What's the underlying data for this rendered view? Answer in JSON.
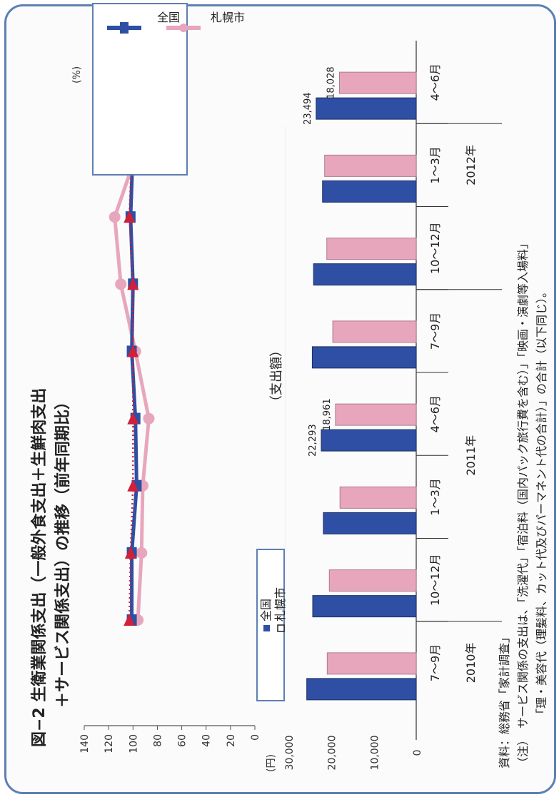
{
  "figure": {
    "title_line1": "図−2 生衛業関係支出（一般外食支出＋生鮮肉支出",
    "title_line2": "＋サービス関係支出）の推移（前年同期比）",
    "subtitle_bar": "（支出額）",
    "unit_percent": "(%)",
    "unit_yen": "(円)",
    "legend_line": [
      "全国",
      "札幌市"
    ],
    "legend_bar": [
      "全国",
      "札幌市"
    ],
    "periods": [
      "7〜9月",
      "10〜12月",
      "1〜3月",
      "4〜6月",
      "7〜9月",
      "10〜12月",
      "1〜3月",
      "4〜6月"
    ],
    "years": [
      "2010年",
      "2011年",
      "2012年"
    ],
    "source": "資料：総務省「家計調査」",
    "note1": "（注）　サービス関係の支出は、「洗濯代」「宿泊料（国内パック旅行費を含む）」「映画・演劇等入場料」",
    "note2": "「理・美容代（理髪料、カット代及びパーマネント代の合計）」の合計（以下同じ）。"
  },
  "colors": {
    "zenkoku": "#2e4fa3",
    "sapporo": "#e8a6bd",
    "marker": "#d0203a",
    "frame": "#5d7fb3"
  },
  "chart_data": [
    {
      "type": "line",
      "title": "図−2 生衛業関係支出（一般外食支出＋生鮮肉支出＋サービス関係支出）の推移（前年同期比）",
      "ylabel": "(%)",
      "ylim": [
        0,
        140
      ],
      "yticks": [
        "140",
        "120",
        "100",
        "80",
        "60",
        "40",
        "20",
        "0"
      ],
      "categories": [
        "7〜9月",
        "10〜12月",
        "1〜3月",
        "4〜6月",
        "7〜9月",
        "10〜12月",
        "1〜3月",
        "4〜6月"
      ],
      "series": [
        {
          "name": "全国",
          "values": [
            101,
            101,
            97,
            98,
            101,
            100,
            102,
            100
          ]
        },
        {
          "name": "札幌市",
          "values": [
            96,
            93,
            92,
            87,
            98,
            110,
            115,
            96
          ]
        },
        {
          "name": "",
          "values": [
            103,
            102,
            100,
            100,
            100,
            100,
            103,
            101
          ],
          "style": "dotted"
        }
      ],
      "legend_position": "right"
    },
    {
      "type": "bar",
      "title": "（支出額）",
      "ylabel": "(円)",
      "ylim": [
        0,
        30000
      ],
      "yticks": [
        "30,000",
        "20,000",
        "10,000",
        "0"
      ],
      "categories": [
        "7〜9月",
        "10〜12月",
        "1〜3月",
        "4〜6月",
        "7〜9月",
        "10〜12月",
        "1〜3月",
        "4〜6月"
      ],
      "series": [
        {
          "name": "全国",
          "values": [
            25700,
            24300,
            21800,
            22293,
            24400,
            24100,
            22000,
            23494
          ]
        },
        {
          "name": "札幌市",
          "values": [
            20900,
            20400,
            17900,
            18961,
            19600,
            21000,
            21500,
            18028
          ]
        }
      ],
      "data_labels": [
        {
          "index": 3,
          "series": 0,
          "text": "22,293"
        },
        {
          "index": 3,
          "series": 1,
          "text": "18,961"
        },
        {
          "index": 7,
          "series": 0,
          "text": "23,494"
        },
        {
          "index": 7,
          "series": 1,
          "text": "18,028"
        }
      ],
      "legend_position": "top-left"
    }
  ]
}
